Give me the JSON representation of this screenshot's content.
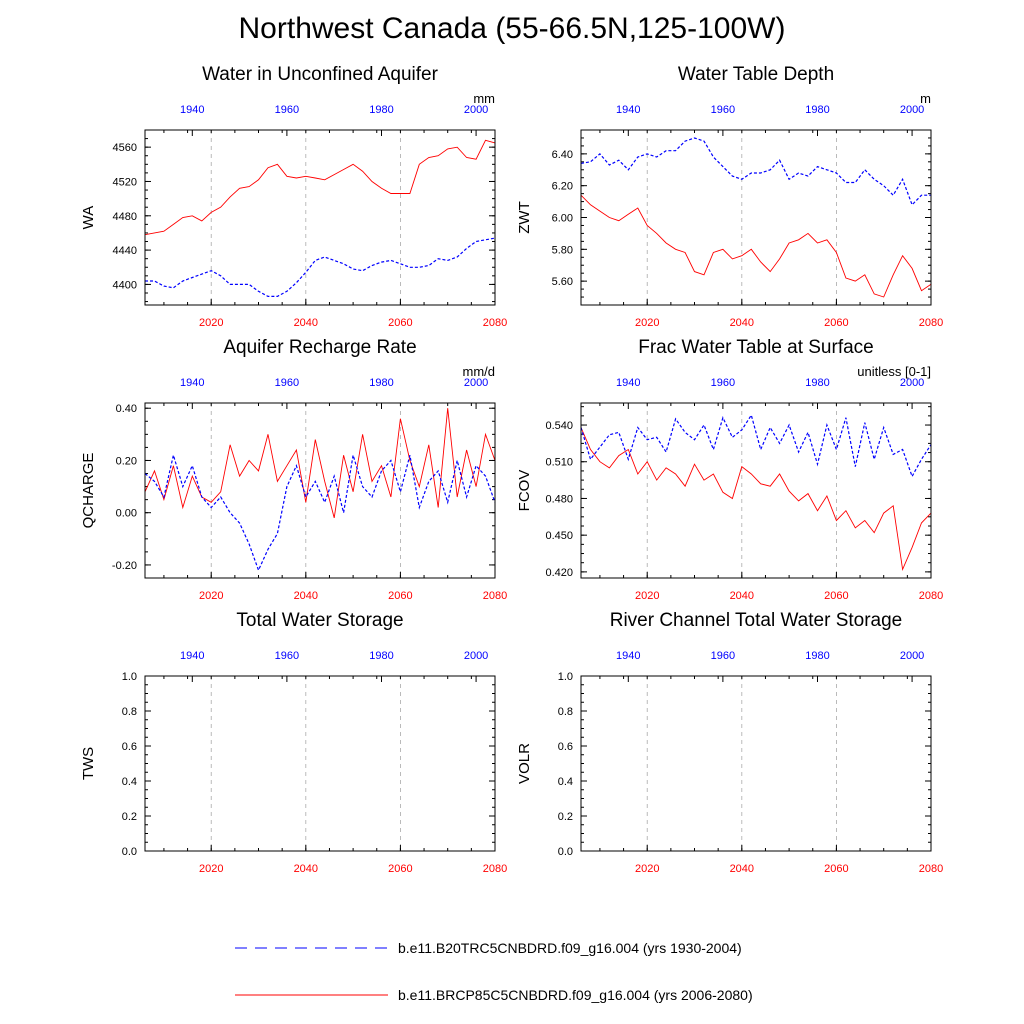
{
  "title": "Northwest Canada (55-66.5N,125-100W)",
  "colors": {
    "hist": "#0000ff",
    "future": "#ff0000",
    "grid": "#aaaaaa"
  },
  "legend": [
    {
      "label": "b.e11.B20TRC5CNBDRD.f09_g16.004 (yrs 1930-2004)",
      "style": "dashed",
      "color": "#0000ff"
    },
    {
      "label": "b.e11.BRCP85C5CNBDRD.f09_g16.004 (yrs 2006-2080)",
      "style": "solid",
      "color": "#ff0000"
    }
  ],
  "chart_data": [
    {
      "id": "WA",
      "type": "line",
      "title": "Water in Unconfined Aquifer",
      "ylabel": "WA",
      "units": "mm",
      "ylim": [
        4376,
        4580
      ],
      "yticks": [
        4400,
        4440,
        4480,
        4520,
        4560
      ],
      "ytick_labels": [
        "4400",
        "4440",
        "4480",
        "4520",
        "4560"
      ],
      "x_bottom_range": [
        2006,
        2080
      ],
      "x_bottom_ticks": [
        2020,
        2040,
        2060,
        2080
      ],
      "x_top_range": [
        1930,
        2004
      ],
      "x_top_ticks": [
        1940,
        1960,
        1980,
        2000
      ],
      "series": [
        {
          "role": "future",
          "x_axis": "bottom",
          "x": [
            2006,
            2008,
            2010,
            2012,
            2014,
            2016,
            2018,
            2020,
            2022,
            2024,
            2026,
            2028,
            2030,
            2032,
            2034,
            2036,
            2038,
            2040,
            2042,
            2044,
            2046,
            2048,
            2050,
            2052,
            2054,
            2056,
            2058,
            2060,
            2062,
            2064,
            2066,
            2068,
            2070,
            2072,
            2074,
            2076,
            2078,
            2080
          ],
          "values": [
            4458,
            4460,
            4462,
            4470,
            4478,
            4480,
            4474,
            4484,
            4490,
            4502,
            4512,
            4514,
            4522,
            4536,
            4540,
            4526,
            4524,
            4526,
            4524,
            4522,
            4528,
            4534,
            4540,
            4532,
            4520,
            4512,
            4506,
            4506,
            4506,
            4540,
            4548,
            4550,
            4558,
            4560,
            4548,
            4546,
            4568,
            4565
          ]
        },
        {
          "role": "hist",
          "x_axis": "top",
          "x": [
            1930,
            1932,
            1934,
            1936,
            1938,
            1940,
            1942,
            1944,
            1946,
            1948,
            1950,
            1952,
            1954,
            1956,
            1958,
            1960,
            1962,
            1964,
            1966,
            1968,
            1970,
            1972,
            1974,
            1976,
            1978,
            1980,
            1982,
            1984,
            1986,
            1988,
            1990,
            1992,
            1994,
            1996,
            1998,
            2000,
            2002,
            2004
          ],
          "values": [
            4404,
            4404,
            4398,
            4396,
            4404,
            4408,
            4412,
            4416,
            4410,
            4400,
            4400,
            4400,
            4392,
            4386,
            4386,
            4392,
            4402,
            4414,
            4428,
            4432,
            4428,
            4424,
            4418,
            4416,
            4422,
            4426,
            4428,
            4424,
            4420,
            4420,
            4422,
            4430,
            4428,
            4432,
            4442,
            4450,
            4452,
            4454
          ]
        }
      ]
    },
    {
      "id": "ZWT",
      "type": "line",
      "title": "Water Table Depth",
      "ylabel": "ZWT",
      "units": "m",
      "ylim": [
        5.45,
        6.55
      ],
      "yticks": [
        5.6,
        5.8,
        6.0,
        6.2,
        6.4
      ],
      "ytick_labels": [
        "5.60",
        "5.80",
        "6.00",
        "6.20",
        "6.40"
      ],
      "x_bottom_range": [
        2006,
        2080
      ],
      "x_bottom_ticks": [
        2020,
        2040,
        2060,
        2080
      ],
      "x_top_range": [
        1930,
        2004
      ],
      "x_top_ticks": [
        1940,
        1960,
        1980,
        2000
      ],
      "series": [
        {
          "role": "future",
          "x_axis": "bottom",
          "x": [
            2006,
            2008,
            2010,
            2012,
            2014,
            2016,
            2018,
            2020,
            2022,
            2024,
            2026,
            2028,
            2030,
            2032,
            2034,
            2036,
            2038,
            2040,
            2042,
            2044,
            2046,
            2048,
            2050,
            2052,
            2054,
            2056,
            2058,
            2060,
            2062,
            2064,
            2066,
            2068,
            2070,
            2072,
            2074,
            2076,
            2078,
            2080
          ],
          "values": [
            6.14,
            6.08,
            6.04,
            6.0,
            5.98,
            6.02,
            6.06,
            5.95,
            5.9,
            5.84,
            5.8,
            5.78,
            5.66,
            5.64,
            5.78,
            5.8,
            5.74,
            5.76,
            5.8,
            5.72,
            5.66,
            5.74,
            5.84,
            5.86,
            5.9,
            5.84,
            5.86,
            5.78,
            5.62,
            5.6,
            5.64,
            5.52,
            5.5,
            5.64,
            5.76,
            5.68,
            5.54,
            5.58
          ]
        },
        {
          "role": "hist",
          "x_axis": "top",
          "x": [
            1930,
            1932,
            1934,
            1936,
            1938,
            1940,
            1942,
            1944,
            1946,
            1948,
            1950,
            1952,
            1954,
            1956,
            1958,
            1960,
            1962,
            1964,
            1966,
            1968,
            1970,
            1972,
            1974,
            1976,
            1978,
            1980,
            1982,
            1984,
            1986,
            1988,
            1990,
            1992,
            1994,
            1996,
            1998,
            2000,
            2002,
            2004
          ],
          "values": [
            6.34,
            6.35,
            6.4,
            6.33,
            6.36,
            6.3,
            6.38,
            6.4,
            6.38,
            6.42,
            6.42,
            6.48,
            6.5,
            6.48,
            6.38,
            6.32,
            6.26,
            6.24,
            6.28,
            6.28,
            6.3,
            6.36,
            6.24,
            6.28,
            6.26,
            6.32,
            6.3,
            6.28,
            6.22,
            6.22,
            6.3,
            6.24,
            6.2,
            6.14,
            6.24,
            6.08,
            6.14,
            6.14
          ]
        }
      ]
    },
    {
      "id": "QCHARGE",
      "type": "line",
      "title": "Aquifer Recharge Rate",
      "ylabel": "QCHARGE",
      "units": "mm/d",
      "ylim": [
        -0.25,
        0.42
      ],
      "yticks": [
        -0.2,
        0.0,
        0.2,
        0.4
      ],
      "ytick_labels": [
        "-0.20",
        "0.00",
        "0.20",
        "0.40"
      ],
      "x_bottom_range": [
        2006,
        2080
      ],
      "x_bottom_ticks": [
        2020,
        2040,
        2060,
        2080
      ],
      "x_top_range": [
        1930,
        2004
      ],
      "x_top_ticks": [
        1940,
        1960,
        1980,
        2000
      ],
      "series": [
        {
          "role": "future",
          "x_axis": "bottom",
          "x": [
            2006,
            2008,
            2010,
            2012,
            2014,
            2016,
            2018,
            2020,
            2022,
            2024,
            2026,
            2028,
            2030,
            2032,
            2034,
            2036,
            2038,
            2040,
            2042,
            2044,
            2046,
            2048,
            2050,
            2052,
            2054,
            2056,
            2058,
            2060,
            2062,
            2064,
            2066,
            2068,
            2070,
            2072,
            2074,
            2076,
            2078,
            2080
          ],
          "values": [
            0.08,
            0.16,
            0.05,
            0.18,
            0.02,
            0.14,
            0.06,
            0.04,
            0.08,
            0.26,
            0.14,
            0.2,
            0.16,
            0.3,
            0.12,
            0.18,
            0.24,
            0.04,
            0.28,
            0.12,
            -0.02,
            0.22,
            0.08,
            0.3,
            0.12,
            0.18,
            0.06,
            0.36,
            0.2,
            0.1,
            0.26,
            0.02,
            0.4,
            0.06,
            0.24,
            0.1,
            0.3,
            0.2
          ]
        },
        {
          "role": "hist",
          "x_axis": "top",
          "x": [
            1930,
            1932,
            1934,
            1936,
            1938,
            1940,
            1942,
            1944,
            1946,
            1948,
            1950,
            1952,
            1954,
            1956,
            1958,
            1960,
            1962,
            1964,
            1966,
            1968,
            1970,
            1972,
            1974,
            1976,
            1978,
            1980,
            1982,
            1984,
            1986,
            1988,
            1990,
            1992,
            1994,
            1996,
            1998,
            2000,
            2002,
            2004
          ],
          "values": [
            0.15,
            0.12,
            0.06,
            0.22,
            0.1,
            0.18,
            0.06,
            0.02,
            0.06,
            0.0,
            -0.04,
            -0.12,
            -0.22,
            -0.14,
            -0.08,
            0.1,
            0.18,
            0.06,
            0.12,
            0.04,
            0.14,
            0.0,
            0.22,
            0.1,
            0.06,
            0.16,
            0.2,
            0.08,
            0.22,
            0.02,
            0.12,
            0.16,
            0.04,
            0.2,
            0.06,
            0.18,
            0.14,
            0.04
          ]
        }
      ]
    },
    {
      "id": "FCOV",
      "type": "line",
      "title": "Frac Water Table at Surface",
      "ylabel": "FCOV",
      "units": "unitless [0-1]",
      "ylim": [
        0.415,
        0.558
      ],
      "yticks": [
        0.42,
        0.45,
        0.48,
        0.51,
        0.54
      ],
      "ytick_labels": [
        "0.420",
        "0.450",
        "0.480",
        "0.510",
        "0.540"
      ],
      "x_bottom_range": [
        2006,
        2080
      ],
      "x_bottom_ticks": [
        2020,
        2040,
        2060,
        2080
      ],
      "x_top_range": [
        1930,
        2004
      ],
      "x_top_ticks": [
        1940,
        1960,
        1980,
        2000
      ],
      "series": [
        {
          "role": "future",
          "x_axis": "bottom",
          "x": [
            2006,
            2008,
            2010,
            2012,
            2014,
            2016,
            2018,
            2020,
            2022,
            2024,
            2026,
            2028,
            2030,
            2032,
            2034,
            2036,
            2038,
            2040,
            2042,
            2044,
            2046,
            2048,
            2050,
            2052,
            2054,
            2056,
            2058,
            2060,
            2062,
            2064,
            2066,
            2068,
            2070,
            2072,
            2074,
            2076,
            2078,
            2080
          ],
          "values": [
            0.538,
            0.52,
            0.51,
            0.505,
            0.515,
            0.52,
            0.5,
            0.51,
            0.495,
            0.505,
            0.5,
            0.49,
            0.508,
            0.495,
            0.5,
            0.485,
            0.48,
            0.506,
            0.5,
            0.492,
            0.49,
            0.5,
            0.486,
            0.478,
            0.484,
            0.47,
            0.482,
            0.462,
            0.47,
            0.456,
            0.462,
            0.452,
            0.468,
            0.474,
            0.422,
            0.44,
            0.46,
            0.468
          ]
        },
        {
          "role": "hist",
          "x_axis": "top",
          "x": [
            1930,
            1932,
            1934,
            1936,
            1938,
            1940,
            1942,
            1944,
            1946,
            1948,
            1950,
            1952,
            1954,
            1956,
            1958,
            1960,
            1962,
            1964,
            1966,
            1968,
            1970,
            1972,
            1974,
            1976,
            1978,
            1980,
            1982,
            1984,
            1986,
            1988,
            1990,
            1992,
            1994,
            1996,
            1998,
            2000,
            2002,
            2004
          ],
          "values": [
            0.538,
            0.512,
            0.522,
            0.532,
            0.534,
            0.512,
            0.538,
            0.528,
            0.53,
            0.518,
            0.545,
            0.534,
            0.528,
            0.54,
            0.52,
            0.546,
            0.53,
            0.536,
            0.548,
            0.52,
            0.538,
            0.525,
            0.54,
            0.518,
            0.534,
            0.508,
            0.54,
            0.52,
            0.546,
            0.506,
            0.542,
            0.512,
            0.538,
            0.516,
            0.52,
            0.498,
            0.512,
            0.524
          ]
        }
      ]
    },
    {
      "id": "TWS",
      "type": "line",
      "title": "Total Water Storage",
      "ylabel": "TWS",
      "units": "",
      "ylim": [
        0.0,
        1.0
      ],
      "yticks": [
        0.0,
        0.2,
        0.4,
        0.6,
        0.8,
        1.0
      ],
      "ytick_labels": [
        "0.0",
        "0.2",
        "0.4",
        "0.6",
        "0.8",
        "1.0"
      ],
      "x_bottom_range": [
        2006,
        2080
      ],
      "x_bottom_ticks": [
        2020,
        2040,
        2060,
        2080
      ],
      "x_top_range": [
        1930,
        2004
      ],
      "x_top_ticks": [
        1940,
        1960,
        1980,
        2000
      ],
      "series": []
    },
    {
      "id": "VOLR",
      "type": "line",
      "title": "River Channel Total Water Storage",
      "ylabel": "VOLR",
      "units": "",
      "ylim": [
        0.0,
        1.0
      ],
      "yticks": [
        0.0,
        0.2,
        0.4,
        0.6,
        0.8,
        1.0
      ],
      "ytick_labels": [
        "0.0",
        "0.2",
        "0.4",
        "0.6",
        "0.8",
        "1.0"
      ],
      "x_bottom_range": [
        2006,
        2080
      ],
      "x_bottom_ticks": [
        2020,
        2040,
        2060,
        2080
      ],
      "x_top_range": [
        1930,
        2004
      ],
      "x_top_ticks": [
        1940,
        1960,
        1980,
        2000
      ],
      "series": []
    }
  ]
}
